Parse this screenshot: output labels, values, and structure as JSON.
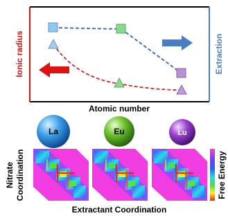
{
  "panel": {
    "y_left_label": "Ionic radius",
    "y_right_label": "Extraction",
    "x_label": "Atomic number"
  },
  "elements": [
    "La",
    "Eu",
    "Lu"
  ],
  "heatmap": {
    "y_label": [
      "Nitrate",
      "Coordination"
    ],
    "x_label": "Extractant Coordination",
    "colorbar_label": "Free Energy"
  }
}
